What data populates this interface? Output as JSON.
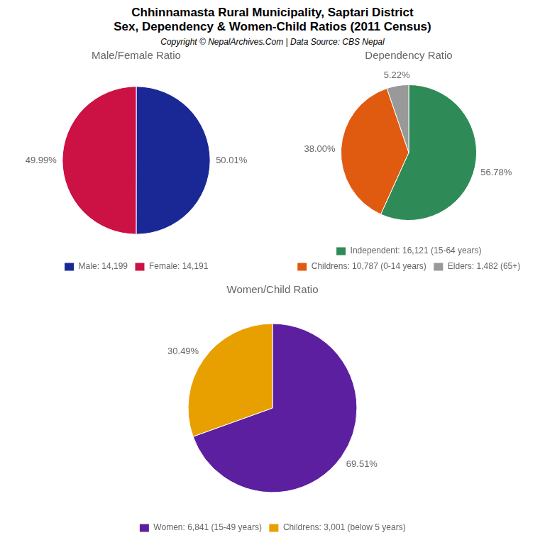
{
  "title": "Chhinnamasta Rural Municipality, Saptari District",
  "subtitle": "Sex, Dependency & Women-Child Ratios (2011 Census)",
  "annotations": [
    "Copyright © NepalArchives.Com | Data Source: CBS Nepal"
  ],
  "chart_data": [
    {
      "type": "pie",
      "title": "Male/Female Ratio",
      "categories": [
        "Male: 14,199",
        "Female: 14,191"
      ],
      "values": [
        50.01,
        49.99
      ],
      "value_labels": [
        "50.01%",
        "49.99%"
      ],
      "colors": [
        "#1a2896",
        "#cc1144"
      ],
      "data_labels": true,
      "legend": "bottom"
    },
    {
      "type": "pie",
      "title": "Dependency Ratio",
      "categories": [
        "Independent: 16,121 (15-64 years)",
        "Childrens: 10,787 (0-14 years)",
        "Elders: 1,482 (65+)"
      ],
      "values": [
        56.78,
        38.0,
        5.22
      ],
      "value_labels": [
        "56.78%",
        "38.00%",
        "5.22%"
      ],
      "colors": [
        "#2e8b57",
        "#e05a10",
        "#999999"
      ],
      "data_labels": true,
      "legend": "bottom"
    },
    {
      "type": "pie",
      "title": "Women/Child Ratio",
      "categories": [
        "Women: 6,841 (15-49 years)",
        "Childrens: 3,001 (below 5 years)"
      ],
      "values": [
        69.51,
        30.49
      ],
      "value_labels": [
        "69.51%",
        "30.49%"
      ],
      "colors": [
        "#5b1fa0",
        "#e8a000"
      ],
      "data_labels": true,
      "legend": "bottom"
    }
  ]
}
